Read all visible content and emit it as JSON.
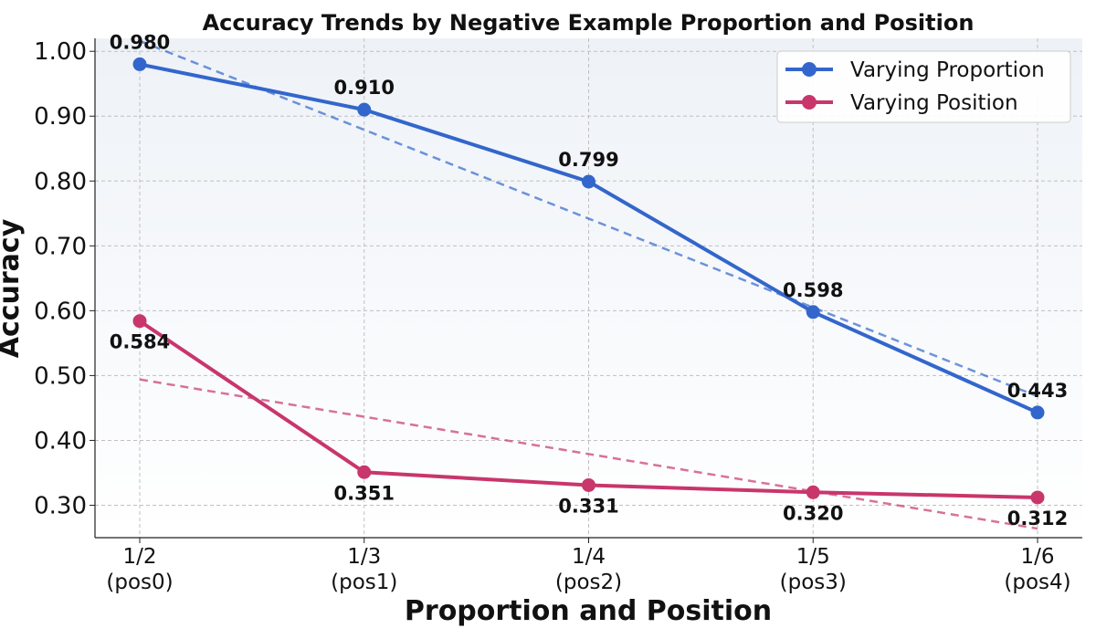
{
  "chart_data": {
    "type": "line",
    "title": "Accuracy Trends by Negative Example Proportion and Position",
    "xlabel": "Proportion and Position",
    "ylabel": "Accuracy",
    "categories": [
      {
        "line1": "1/2",
        "line2": "(pos0)"
      },
      {
        "line1": "1/3",
        "line2": "(pos1)"
      },
      {
        "line1": "1/4",
        "line2": "(pos2)"
      },
      {
        "line1": "1/5",
        "line2": "(pos3)"
      },
      {
        "line1": "1/6",
        "line2": "(pos4)"
      }
    ],
    "ylim": [
      0.25,
      1.02
    ],
    "yticks": [
      "0.30",
      "0.40",
      "0.50",
      "0.60",
      "0.70",
      "0.80",
      "0.90",
      "1.00"
    ],
    "grid": true,
    "legend_position": "top-right",
    "series": [
      {
        "name": "Varying Proportion",
        "color": "#3366cc",
        "values": [
          0.98,
          0.91,
          0.799,
          0.598,
          0.443
        ],
        "labels": [
          "0.980",
          "0.910",
          "0.799",
          "0.598",
          "0.443"
        ],
        "label_placement": "above",
        "trendline": {
          "start": 1.016,
          "end": 0.468
        }
      },
      {
        "name": "Varying Position",
        "color": "#c8366b",
        "values": [
          0.584,
          0.351,
          0.331,
          0.32,
          0.312
        ],
        "labels": [
          "0.584",
          "0.351",
          "0.331",
          "0.320",
          "0.312"
        ],
        "label_placement": "below",
        "trendline": {
          "start": 0.494,
          "end": 0.264
        }
      }
    ]
  }
}
